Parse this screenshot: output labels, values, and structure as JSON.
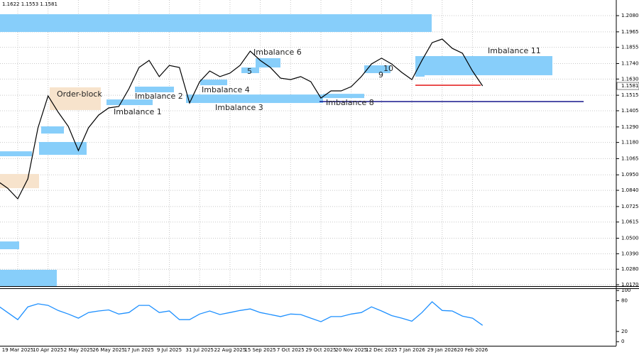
{
  "chart_data": [
    {
      "type": "line",
      "title": "1.1622 1.1553 1.1581",
      "color": "#000000",
      "categories": [
        null,
        null,
        "19 Mar 2025",
        null,
        null,
        "10 Apr 2025",
        null,
        null,
        "2 May 2025",
        null,
        null,
        "26 May 2025",
        null,
        null,
        "17 Jun 2025",
        null,
        null,
        "9 Jul 2025",
        null,
        null,
        "31 Jul 2025",
        null,
        null,
        "22 Aug 2025",
        null,
        null,
        "15 Sep 2025",
        null,
        null,
        "7 Oct 2025",
        null,
        null,
        "29 Oct 2025",
        null,
        null,
        "20 Nov 2025",
        null,
        null,
        "12 Dec 2025",
        null,
        null,
        "7 Jan 2026",
        null,
        null,
        "29 Jan 2026",
        null,
        null,
        "20 Feb 2026",
        null
      ],
      "values": [
        1.0906,
        1.0855,
        1.078,
        1.0921,
        1.1284,
        1.151,
        1.1395,
        1.1294,
        1.1122,
        1.1284,
        1.1374,
        1.1425,
        1.1435,
        1.1561,
        1.1712,
        1.1762,
        1.1647,
        1.1727,
        1.1712,
        1.146,
        1.1611,
        1.1687,
        1.1647,
        1.1672,
        1.1727,
        1.1828,
        1.1762,
        1.1712,
        1.1636,
        1.1626,
        1.1647,
        1.1611,
        1.1495,
        1.1546,
        1.1546,
        1.1576,
        1.1647,
        1.1737,
        1.1778,
        1.1737,
        1.1677,
        1.1626,
        1.1762,
        1.1888,
        1.1914,
        1.1848,
        1.1813,
        1.1687,
        1.1581
      ],
      "ylim": [
        1.016,
        1.2191
      ],
      "yticks": [
        {
          "value": 1.208,
          "label": "1.2080"
        },
        1.1965,
        1.1855,
        {
          "value": 1.174,
          "label": "1.1740"
        },
        {
          "value": 1.163,
          "label": "1.1630"
        },
        1.1515,
        1.1405,
        {
          "value": 1.129,
          "label": "1.1290"
        },
        {
          "value": 1.118,
          "label": "1.1180"
        },
        1.1065,
        {
          "value": 1.095,
          "label": "1.0950"
        },
        {
          "value": 1.084,
          "label": "1.0840"
        },
        1.0725,
        1.0615,
        {
          "value": 1.05,
          "label": "1.0500"
        },
        {
          "value": 1.039,
          "label": "1.0390"
        },
        {
          "value": 1.028,
          "label": "1.0280"
        },
        {
          "value": 1.017,
          "label": "1.0170"
        }
      ],
      "grid": true,
      "zones": [
        {
          "low": 1.1964,
          "high": 1.209,
          "color": "#87cefa"
        },
        {
          "label": "Imbalance 11",
          "low": 1.1657,
          "high": 1.1793,
          "color": "#87cefa"
        },
        {
          "label": "Imbalance 6",
          "low": 1.1712,
          "high": 1.1778,
          "color": "#87cefa"
        },
        {
          "label": "5",
          "low": 1.1672,
          "high": 1.1712,
          "color": "#87cefa"
        },
        {
          "label": "Imbalance 4",
          "low": 1.1586,
          "high": 1.1626,
          "color": "#87cefa"
        },
        {
          "label": "Imbalance 2",
          "low": 1.1536,
          "high": 1.1576,
          "color": "#87cefa"
        },
        {
          "label": "Imbalance 1",
          "low": 1.1445,
          "high": 1.1485,
          "color": "#87cefa"
        },
        {
          "label": "Imbalance 3",
          "low": 1.146,
          "high": 1.152,
          "color": "#87cefa"
        },
        {
          "label": "Imbalance 8",
          "low": 1.1495,
          "high": 1.1525,
          "color": "#87cefa"
        },
        {
          "label": "10",
          "low": 1.1672,
          "high": 1.1727,
          "color": "#87cefa"
        },
        {
          "label": "9",
          "low": 1.1647,
          "high": 1.1687,
          "color": "#87cefa"
        },
        {
          "label": "Order-block",
          "low": 1.141,
          "high": 1.1571,
          "color": "#f7e3cc"
        },
        {
          "low": 1.0855,
          "high": 1.0956,
          "color": "#f7e3cc"
        },
        {
          "low": 1.1092,
          "high": 1.1183,
          "color": "#87cefa"
        },
        {
          "low": 1.1243,
          "high": 1.1294,
          "color": "#87cefa"
        },
        {
          "low": 1.1082,
          "high": 1.1117,
          "color": "#87cefa"
        },
        {
          "low": 1.0422,
          "high": 1.0477,
          "color": "#87cefa"
        },
        {
          "low": 1.016,
          "high": 1.0276,
          "color": "#87cefa"
        }
      ],
      "levels": [
        {
          "value": 1.1586,
          "color": "#e00000"
        },
        {
          "value": 1.147,
          "color": "#000080"
        }
      ]
    },
    {
      "type": "line",
      "color": "#1e90ff",
      "values": [
        71,
        57,
        43,
        68,
        74,
        71,
        61,
        54,
        46,
        57,
        60,
        62,
        54,
        57,
        71,
        71,
        57,
        60,
        43,
        43,
        54,
        60,
        53,
        57,
        61,
        64,
        57,
        53,
        49,
        54,
        53,
        46,
        39,
        49,
        49,
        54,
        57,
        68,
        60,
        51,
        46,
        40,
        57,
        78,
        61,
        60,
        50,
        46,
        32
      ],
      "ylim": [
        -8,
        103
      ],
      "yticks": [
        100,
        80,
        20,
        0
      ]
    }
  ]
}
